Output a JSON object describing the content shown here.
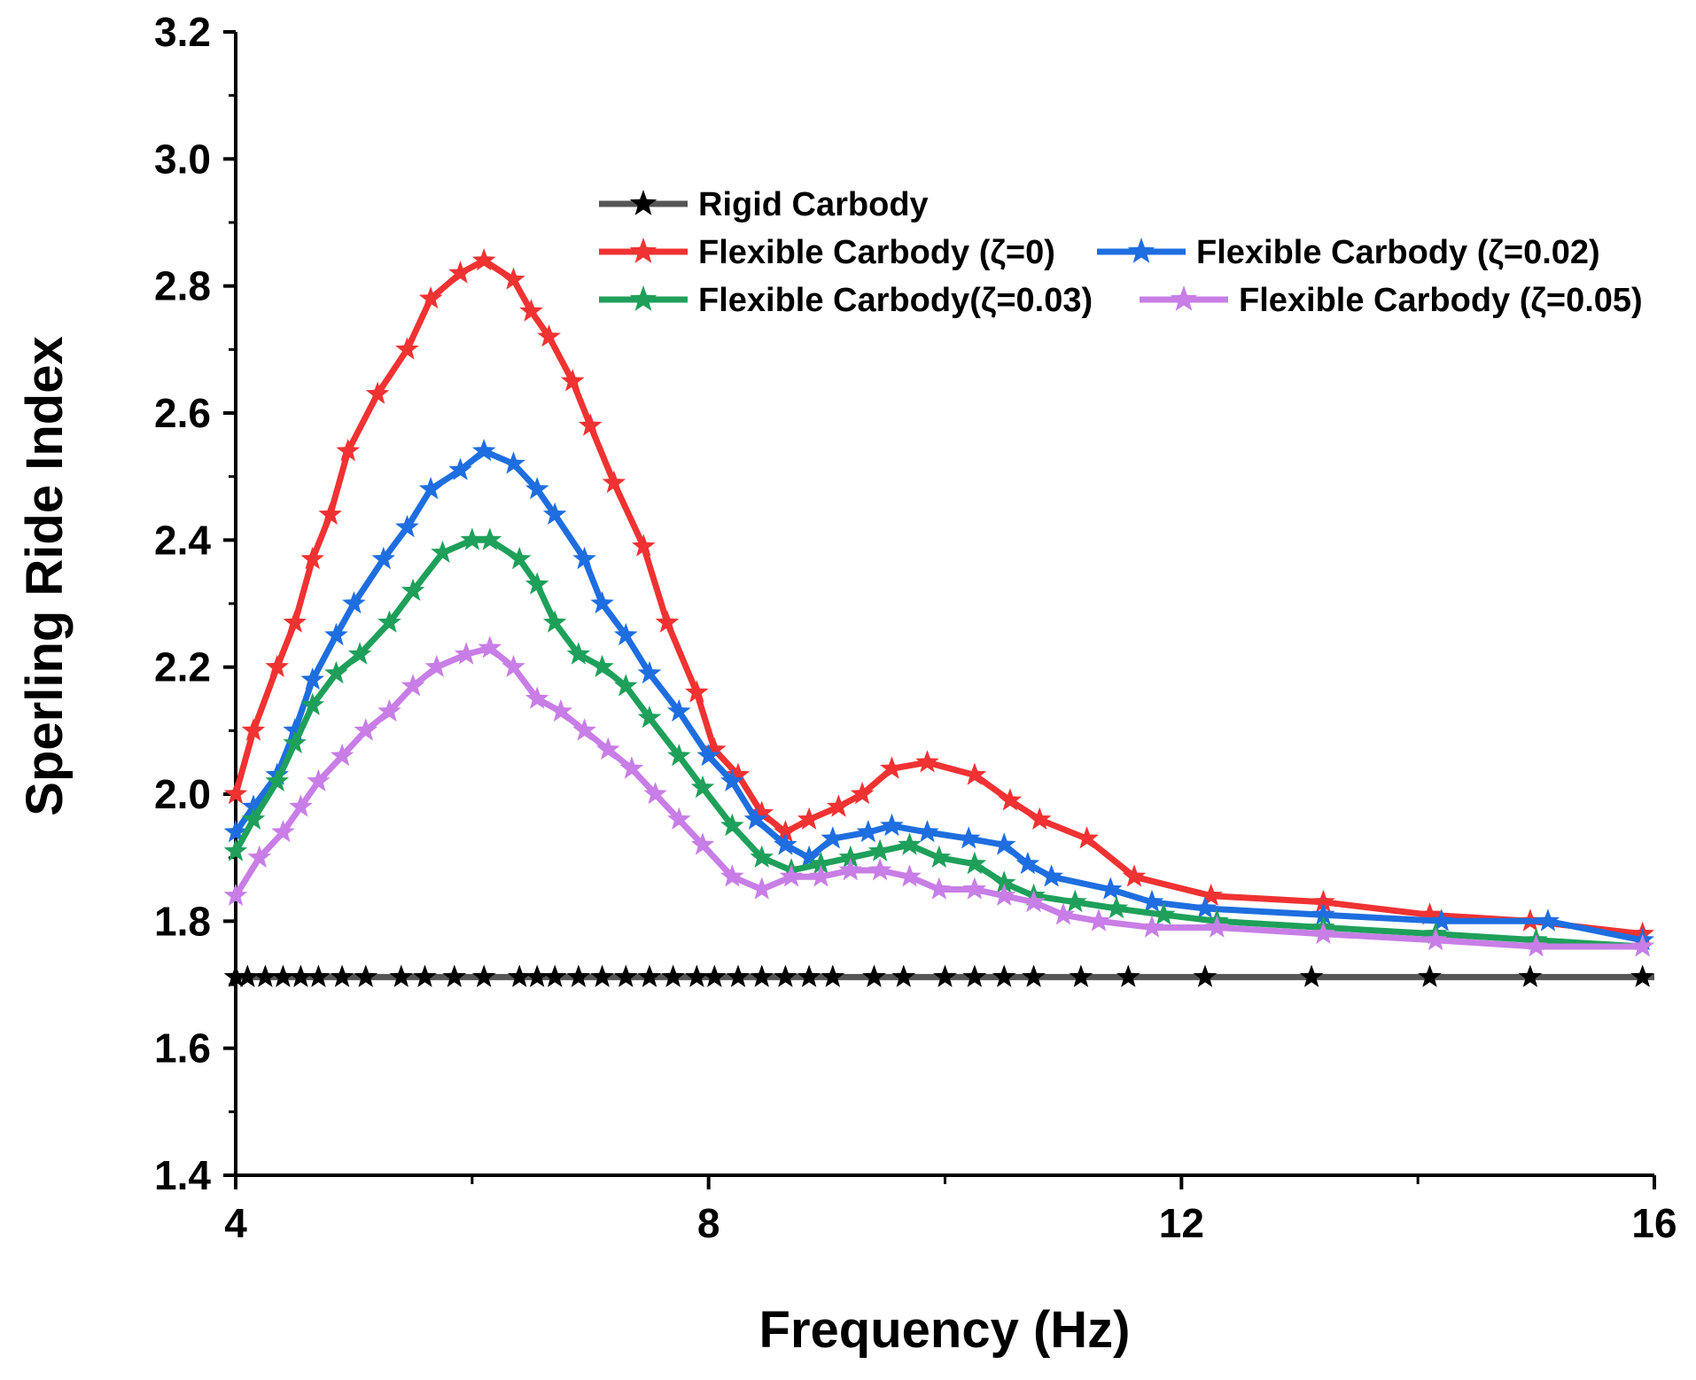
{
  "chart_data": {
    "type": "line",
    "title": "",
    "xlabel": "Frequency (Hz)",
    "ylabel": "Sperling Ride Index",
    "xlim": [
      4,
      16
    ],
    "ylim": [
      1.4,
      3.2
    ],
    "xticks": [
      4,
      8,
      12,
      16
    ],
    "yticks": [
      1.4,
      1.6,
      1.8,
      2.0,
      2.2,
      2.4,
      2.6,
      2.8,
      3.0,
      3.2
    ],
    "xtick_labels": [
      "4",
      "8",
      "12",
      "16"
    ],
    "ytick_labels": [
      "1.4",
      "1.6",
      "1.8",
      "2.0",
      "2.2",
      "2.4",
      "2.6",
      "2.8",
      "3.0",
      "3.2"
    ],
    "legend_position": "top-right",
    "series": [
      {
        "name": "Rigid Carbody",
        "color": "#000000",
        "line_color": "#555555",
        "x": [
          4.0,
          4.1,
          4.25,
          4.4,
          4.55,
          4.7,
          4.9,
          5.1,
          5.4,
          5.6,
          5.85,
          6.1,
          6.4,
          6.55,
          6.7,
          6.9,
          7.1,
          7.3,
          7.5,
          7.7,
          7.9,
          8.05,
          8.25,
          8.45,
          8.65,
          8.85,
          9.05,
          9.4,
          9.65,
          10.0,
          10.25,
          10.5,
          10.75,
          11.15,
          11.55,
          12.2,
          13.1,
          14.1,
          14.95,
          15.9
        ],
        "y": [
          1.712,
          1.712,
          1.712,
          1.712,
          1.712,
          1.712,
          1.712,
          1.712,
          1.712,
          1.712,
          1.712,
          1.712,
          1.712,
          1.712,
          1.712,
          1.712,
          1.712,
          1.712,
          1.712,
          1.712,
          1.712,
          1.712,
          1.712,
          1.712,
          1.712,
          1.712,
          1.712,
          1.712,
          1.712,
          1.712,
          1.712,
          1.712,
          1.712,
          1.712,
          1.712,
          1.712,
          1.712,
          1.712,
          1.712,
          1.712
        ]
      },
      {
        "name": "Flexible Carbody (ζ=0)",
        "color": "#f03232",
        "x": [
          4.0,
          4.15,
          4.35,
          4.5,
          4.65,
          4.8,
          4.95,
          5.2,
          5.45,
          5.65,
          5.9,
          6.1,
          6.35,
          6.5,
          6.65,
          6.85,
          7.0,
          7.2,
          7.45,
          7.65,
          7.9,
          8.05,
          8.25,
          8.45,
          8.65,
          8.85,
          9.1,
          9.3,
          9.55,
          9.85,
          10.25,
          10.55,
          10.8,
          11.2,
          11.6,
          12.25,
          13.2,
          14.1,
          14.95,
          15.9
        ],
        "y": [
          2.0,
          2.1,
          2.2,
          2.27,
          2.37,
          2.44,
          2.54,
          2.63,
          2.7,
          2.78,
          2.82,
          2.84,
          2.81,
          2.76,
          2.72,
          2.65,
          2.58,
          2.49,
          2.39,
          2.27,
          2.16,
          2.07,
          2.03,
          1.97,
          1.94,
          1.96,
          1.98,
          2.0,
          2.04,
          2.05,
          2.03,
          1.99,
          1.96,
          1.93,
          1.87,
          1.84,
          1.83,
          1.81,
          1.8,
          1.78
        ]
      },
      {
        "name": "Flexible Carbody (ζ=0.02)",
        "color": "#1e6ee0",
        "x": [
          4.0,
          4.15,
          4.35,
          4.5,
          4.65,
          4.85,
          5.0,
          5.25,
          5.45,
          5.65,
          5.9,
          6.1,
          6.35,
          6.55,
          6.7,
          6.95,
          7.1,
          7.3,
          7.5,
          7.75,
          8.0,
          8.2,
          8.4,
          8.65,
          8.85,
          9.05,
          9.35,
          9.55,
          9.85,
          10.2,
          10.5,
          10.7,
          10.9,
          11.4,
          11.75,
          12.2,
          13.2,
          14.2,
          15.1,
          15.9
        ],
        "y": [
          1.94,
          1.98,
          2.03,
          2.1,
          2.18,
          2.25,
          2.3,
          2.37,
          2.42,
          2.48,
          2.51,
          2.54,
          2.52,
          2.48,
          2.44,
          2.37,
          2.3,
          2.25,
          2.19,
          2.13,
          2.06,
          2.02,
          1.96,
          1.92,
          1.9,
          1.93,
          1.94,
          1.95,
          1.94,
          1.93,
          1.92,
          1.89,
          1.87,
          1.85,
          1.83,
          1.82,
          1.81,
          1.8,
          1.8,
          1.77
        ]
      },
      {
        "name": "Flexible Carbody(ζ=0.03)",
        "color": "#1ea05a",
        "x": [
          4.0,
          4.15,
          4.35,
          4.5,
          4.65,
          4.85,
          5.05,
          5.3,
          5.5,
          5.75,
          6.0,
          6.15,
          6.4,
          6.55,
          6.7,
          6.9,
          7.1,
          7.3,
          7.5,
          7.75,
          7.95,
          8.2,
          8.45,
          8.7,
          8.95,
          9.2,
          9.45,
          9.7,
          9.95,
          10.25,
          10.5,
          10.75,
          11.1,
          11.45,
          11.85,
          12.3,
          13.2,
          14.15,
          15.0,
          15.9
        ],
        "y": [
          1.91,
          1.96,
          2.02,
          2.08,
          2.14,
          2.19,
          2.22,
          2.27,
          2.32,
          2.38,
          2.4,
          2.4,
          2.37,
          2.33,
          2.27,
          2.22,
          2.2,
          2.17,
          2.12,
          2.06,
          2.01,
          1.95,
          1.9,
          1.88,
          1.89,
          1.9,
          1.91,
          1.92,
          1.9,
          1.89,
          1.86,
          1.84,
          1.83,
          1.82,
          1.81,
          1.8,
          1.79,
          1.78,
          1.77,
          1.76
        ]
      },
      {
        "name": "Flexible Carbody (ζ=0.05)",
        "color": "#c87ee6",
        "x": [
          4.0,
          4.2,
          4.4,
          4.55,
          4.7,
          4.9,
          5.1,
          5.3,
          5.5,
          5.7,
          5.95,
          6.15,
          6.35,
          6.55,
          6.75,
          6.95,
          7.15,
          7.35,
          7.55,
          7.75,
          7.95,
          8.2,
          8.45,
          8.7,
          8.95,
          9.2,
          9.45,
          9.7,
          9.95,
          10.25,
          10.5,
          10.75,
          11.0,
          11.3,
          11.75,
          12.3,
          13.2,
          14.15,
          15.0,
          15.9
        ],
        "y": [
          1.84,
          1.9,
          1.94,
          1.98,
          2.02,
          2.06,
          2.1,
          2.13,
          2.17,
          2.2,
          2.22,
          2.23,
          2.2,
          2.15,
          2.13,
          2.1,
          2.07,
          2.04,
          2.0,
          1.96,
          1.92,
          1.87,
          1.85,
          1.87,
          1.87,
          1.88,
          1.88,
          1.87,
          1.85,
          1.85,
          1.84,
          1.83,
          1.81,
          1.8,
          1.79,
          1.79,
          1.78,
          1.77,
          1.76,
          1.76
        ]
      }
    ]
  }
}
